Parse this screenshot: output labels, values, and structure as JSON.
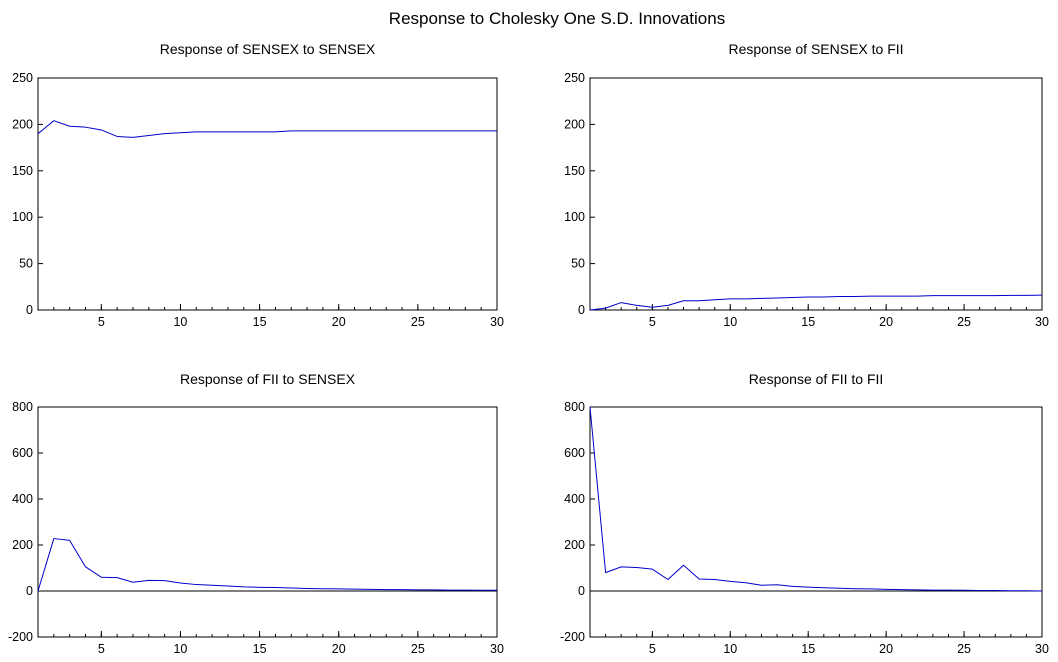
{
  "figure": {
    "title": "Response to Cholesky One S.D. Innovations"
  },
  "colors": {
    "series": "#0000cc",
    "axis": "#000000",
    "background": "#ffffff"
  },
  "chart_data": [
    {
      "type": "line",
      "title": "Response of SENSEX to SENSEX",
      "xlabel": "",
      "ylabel": "",
      "xlim": [
        1,
        30
      ],
      "ylim": [
        0,
        250
      ],
      "xticks": [
        5,
        10,
        15,
        20,
        25,
        30
      ],
      "yticks": [
        0,
        50,
        100,
        150,
        200,
        250
      ],
      "zero_line": false,
      "grid": false,
      "legend": "none",
      "x": [
        1,
        2,
        3,
        4,
        5,
        6,
        7,
        8,
        9,
        10,
        11,
        12,
        13,
        14,
        15,
        16,
        17,
        18,
        19,
        20,
        21,
        22,
        23,
        24,
        25,
        26,
        27,
        28,
        29,
        30
      ],
      "series": [
        {
          "values": [
            190,
            204,
            198,
            197,
            194,
            187,
            186,
            188,
            190,
            191,
            192,
            192,
            192,
            192,
            192,
            192,
            193,
            193,
            193,
            193,
            193,
            193,
            193,
            193,
            193,
            193,
            193,
            193,
            193,
            193
          ]
        }
      ]
    },
    {
      "type": "line",
      "title": "Response of SENSEX to FII",
      "xlabel": "",
      "ylabel": "",
      "xlim": [
        1,
        30
      ],
      "ylim": [
        0,
        250
      ],
      "xticks": [
        5,
        10,
        15,
        20,
        25,
        30
      ],
      "yticks": [
        0,
        50,
        100,
        150,
        200,
        250
      ],
      "zero_line": false,
      "grid": false,
      "legend": "none",
      "x": [
        1,
        2,
        3,
        4,
        5,
        6,
        7,
        8,
        9,
        10,
        11,
        12,
        13,
        14,
        15,
        16,
        17,
        18,
        19,
        20,
        21,
        22,
        23,
        24,
        25,
        26,
        27,
        28,
        29,
        30
      ],
      "series": [
        {
          "values": [
            0,
            2,
            8,
            5,
            3,
            5,
            10,
            10,
            11,
            12,
            12,
            12.5,
            13,
            13.5,
            14,
            14,
            14.5,
            14.5,
            15,
            15,
            15,
            15,
            15.5,
            15.5,
            15.5,
            15.5,
            15.5,
            15.8,
            15.8,
            16
          ]
        }
      ]
    },
    {
      "type": "line",
      "title": "Response of FII to SENSEX",
      "xlabel": "",
      "ylabel": "",
      "xlim": [
        1,
        30
      ],
      "ylim": [
        -200,
        800
      ],
      "xticks": [
        5,
        10,
        15,
        20,
        25,
        30
      ],
      "yticks": [
        -200,
        0,
        200,
        400,
        600,
        800
      ],
      "zero_line": true,
      "grid": false,
      "legend": "none",
      "x": [
        1,
        2,
        3,
        4,
        5,
        6,
        7,
        8,
        9,
        10,
        11,
        12,
        13,
        14,
        15,
        16,
        17,
        18,
        19,
        20,
        21,
        22,
        23,
        24,
        25,
        26,
        27,
        28,
        29,
        30
      ],
      "series": [
        {
          "values": [
            0,
            228,
            220,
            105,
            60,
            58,
            38,
            46,
            45,
            35,
            28,
            25,
            22,
            18,
            16,
            15,
            13,
            11,
            10,
            9,
            8,
            7,
            6,
            6,
            5,
            5,
            4,
            4,
            3,
            3
          ]
        }
      ]
    },
    {
      "type": "line",
      "title": "Response of FII to FII",
      "xlabel": "",
      "ylabel": "",
      "xlim": [
        1,
        30
      ],
      "ylim": [
        -200,
        800
      ],
      "xticks": [
        5,
        10,
        15,
        20,
        25,
        30
      ],
      "yticks": [
        -200,
        0,
        200,
        400,
        600,
        800
      ],
      "zero_line": true,
      "grid": false,
      "legend": "none",
      "x": [
        1,
        2,
        3,
        4,
        5,
        6,
        7,
        8,
        9,
        10,
        11,
        12,
        13,
        14,
        15,
        16,
        17,
        18,
        19,
        20,
        21,
        22,
        23,
        24,
        25,
        26,
        27,
        28,
        29,
        30
      ],
      "series": [
        {
          "values": [
            800,
            80,
            105,
            102,
            95,
            50,
            112,
            52,
            50,
            42,
            36,
            25,
            27,
            20,
            17,
            14,
            12,
            10,
            9,
            7,
            6,
            5,
            4,
            4,
            3,
            2,
            2,
            1,
            1,
            0
          ]
        }
      ]
    }
  ]
}
